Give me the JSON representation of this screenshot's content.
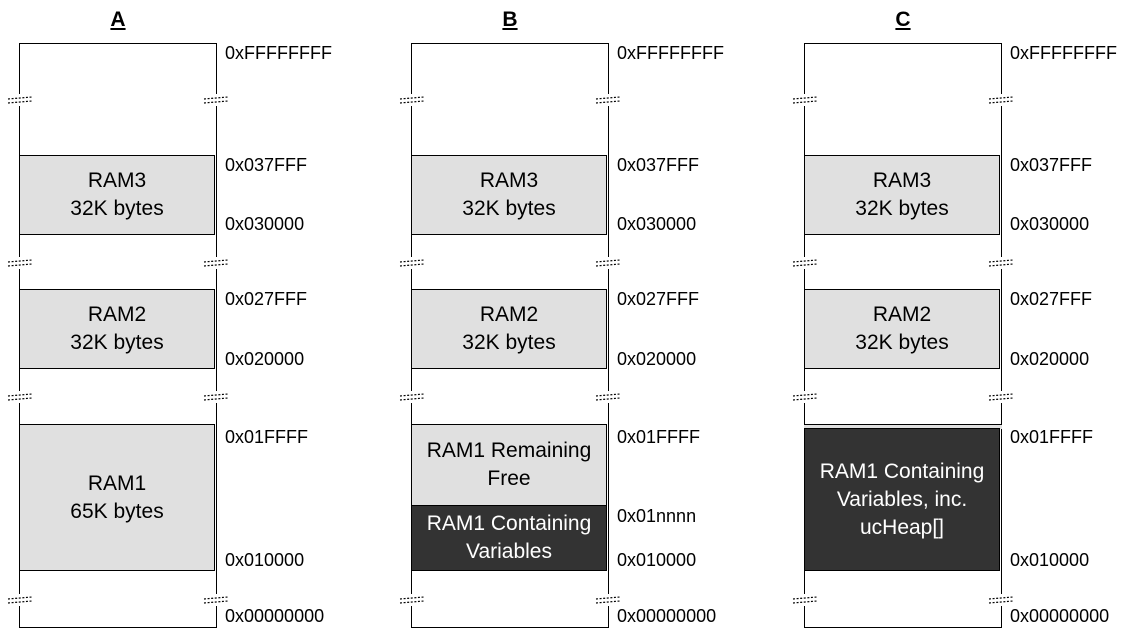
{
  "columns": [
    {
      "title": "A",
      "top_address": "0xFFFFFFFF",
      "bottom_address": "0x00000000",
      "blocks": [
        {
          "label": "RAM3\n32K bytes",
          "style": "light",
          "addr_top": "0x037FFF",
          "addr_bottom": "0x030000"
        },
        {
          "label": "RAM2\n32K bytes",
          "style": "light",
          "addr_top": "0x027FFF",
          "addr_bottom": "0x020000"
        },
        {
          "label": "RAM1\n65K bytes",
          "style": "light",
          "addr_top": "0x01FFFF",
          "addr_bottom": "0x010000"
        }
      ]
    },
    {
      "title": "B",
      "top_address": "0xFFFFFFFF",
      "bottom_address": "0x00000000",
      "blocks": [
        {
          "label": "RAM3\n32K bytes",
          "style": "light",
          "addr_top": "0x037FFF",
          "addr_bottom": "0x030000"
        },
        {
          "label": "RAM2\n32K bytes",
          "style": "light",
          "addr_top": "0x027FFF",
          "addr_bottom": "0x020000"
        },
        {
          "label": "RAM1 Remaining\nFree",
          "style": "light",
          "addr_top": "0x01FFFF",
          "addr_bottom": ""
        },
        {
          "label": "RAM1 Containing\nVariables",
          "style": "dark",
          "addr_top": "0x01nnnn",
          "addr_bottom": "0x010000"
        }
      ]
    },
    {
      "title": "C",
      "top_address": "0xFFFFFFFF",
      "bottom_address": "0x00000000",
      "blocks": [
        {
          "label": "RAM3\n32K bytes",
          "style": "light",
          "addr_top": "0x037FFF",
          "addr_bottom": "0x030000"
        },
        {
          "label": "RAM2\n32K bytes",
          "style": "light",
          "addr_top": "0x027FFF",
          "addr_bottom": "0x020000"
        },
        {
          "label": "RAM1 Containing\nVariables, inc.\nucHeap[]",
          "style": "dark",
          "addr_top": "0x01FFFF",
          "addr_bottom": "0x010000"
        }
      ]
    }
  ]
}
